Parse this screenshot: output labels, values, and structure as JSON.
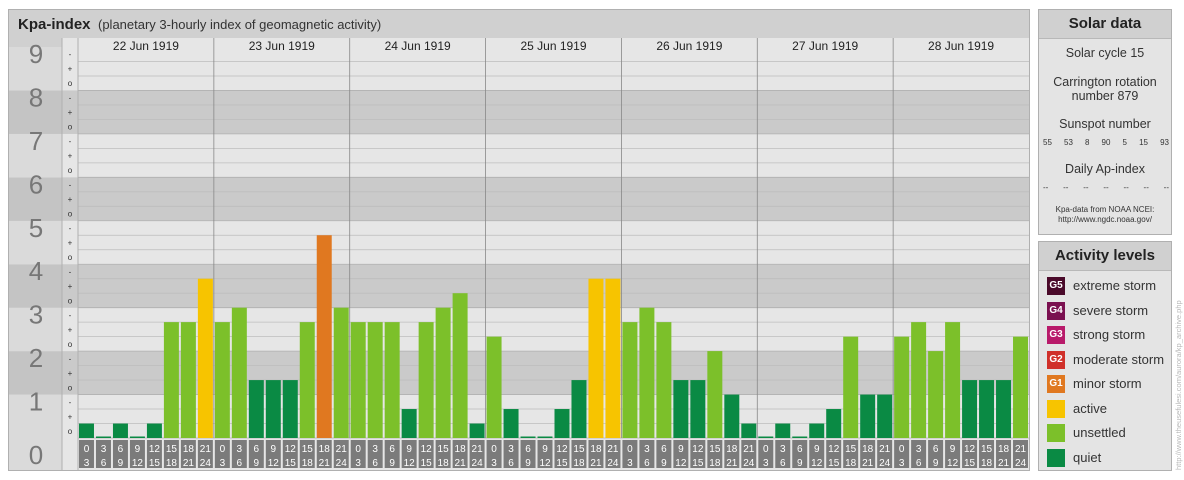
{
  "header": {
    "title": "Kpa-index",
    "subtitle": "(planetary 3-hourly index of geomagnetic activity)"
  },
  "chart_data": {
    "type": "bar",
    "title": "Kpa-index",
    "subtitle": "(planetary 3-hourly index of geomagnetic activity)",
    "ylim": [
      0,
      9
    ],
    "y_ticks": [
      "0",
      "1",
      "2",
      "3",
      "4",
      "5",
      "6",
      "7",
      "8",
      "9"
    ],
    "sub_tick_labels": [
      "o",
      "+",
      "-"
    ],
    "days": [
      "22 Jun 1919",
      "23 Jun 1919",
      "24 Jun 1919",
      "25 Jun 1919",
      "26 Jun 1919",
      "27 Jun 1919",
      "28 Jun 1919"
    ],
    "hour_start_labels": [
      "0",
      "3",
      "6",
      "9",
      "12",
      "15",
      "18",
      "21"
    ],
    "hour_end_labels": [
      "3",
      "6",
      "9",
      "12",
      "15",
      "18",
      "21",
      "24"
    ],
    "values": [
      [
        0.333,
        0.0,
        0.333,
        0.0,
        0.333,
        2.667,
        2.667,
        3.667
      ],
      [
        2.667,
        3.0,
        1.333,
        1.333,
        1.333,
        2.667,
        4.667,
        3.0
      ],
      [
        2.667,
        2.667,
        2.667,
        0.667,
        2.667,
        3.0,
        3.333,
        0.333
      ],
      [
        2.333,
        0.667,
        0.0,
        0.0,
        0.667,
        1.333,
        3.667,
        3.667
      ],
      [
        2.667,
        3.0,
        2.667,
        1.333,
        1.333,
        2.0,
        1.0,
        0.333
      ],
      [
        0.0,
        0.333,
        0.0,
        0.333,
        0.667,
        2.333,
        1.0,
        1.0
      ],
      [
        2.333,
        2.667,
        2.0,
        2.667,
        1.333,
        1.333,
        1.333,
        2.333
      ]
    ],
    "grid": true
  },
  "solar": {
    "heading": "Solar data",
    "cycle": "Solar cycle 15",
    "carrington_line1": "Carrington rotation",
    "carrington_line2": "number 879",
    "sunspot_label": "Sunspot number",
    "sunspot_values": [
      "55",
      "53",
      "8",
      "90",
      "5",
      "15",
      "93"
    ],
    "ap_label": "Daily Ap-index",
    "ap_values": [
      "--",
      "--",
      "--",
      "--",
      "--",
      "--",
      "--"
    ],
    "source_line1": "Kpa-data from NOAA NCEI:",
    "source_line2": "http://www.ngdc.noaa.gov/"
  },
  "levels": {
    "heading": "Activity levels",
    "items": [
      {
        "badge": "G5",
        "label": "extreme storm",
        "color": "#4a0a2a"
      },
      {
        "badge": "G4",
        "label": "severe storm",
        "color": "#7a1050"
      },
      {
        "badge": "G3",
        "label": "strong storm",
        "color": "#b81a6a"
      },
      {
        "badge": "G2",
        "label": "moderate storm",
        "color": "#d0302a"
      },
      {
        "badge": "G1",
        "label": "minor storm",
        "color": "#e07820"
      },
      {
        "badge": "",
        "label": "active",
        "color": "#f7c400"
      },
      {
        "badge": "",
        "label": "unsettled",
        "color": "#7cc02a"
      },
      {
        "badge": "",
        "label": "quiet",
        "color": "#0a8a44"
      }
    ]
  },
  "colors": {
    "quiet": "#0a8a44",
    "unsettled": "#7cc02a",
    "active": "#f7c400",
    "minor_storm": "#e07820"
  },
  "credit": "http://www.theusefulesi.com/aurora/kp_archive.php"
}
